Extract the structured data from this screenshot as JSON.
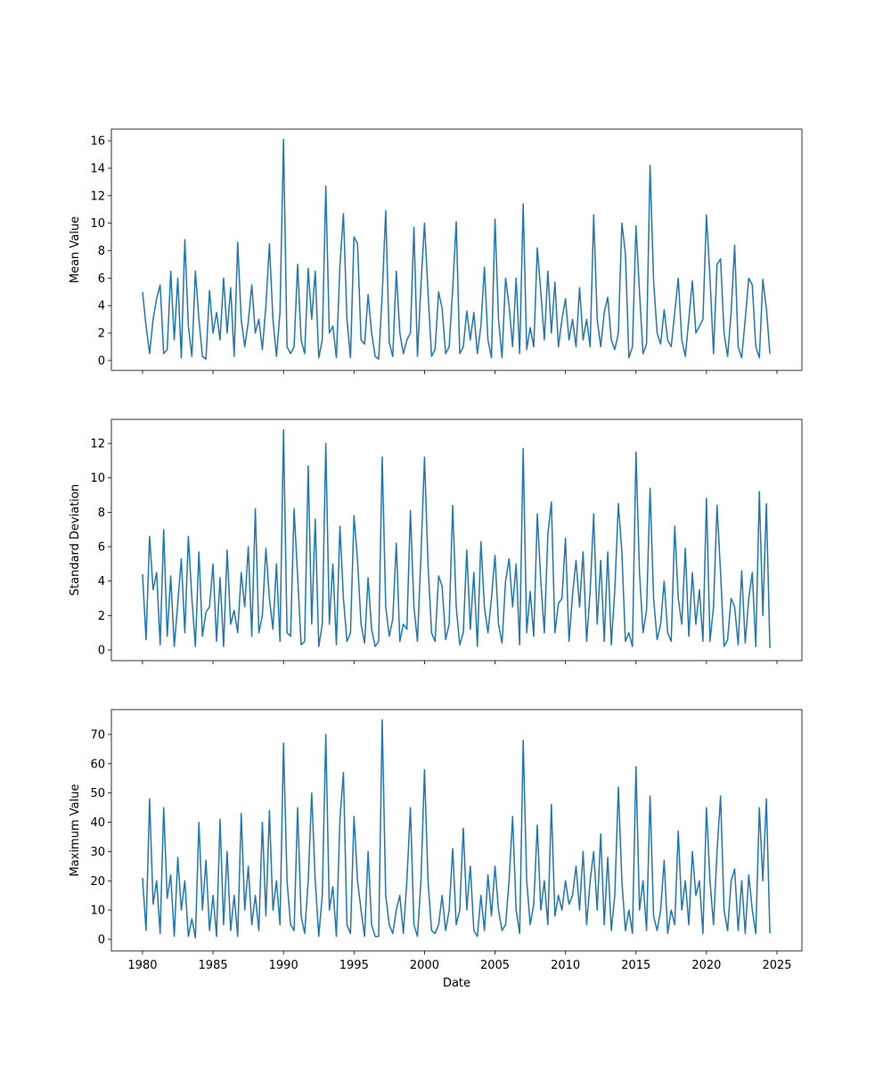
{
  "chart_data": [
    {
      "type": "line",
      "ylabel": "Mean Value",
      "color": "#1f77b4",
      "x": [
        1980,
        1980.25,
        1980.5,
        1980.75,
        1981,
        1981.25,
        1981.5,
        1981.75,
        1982,
        1982.25,
        1982.5,
        1982.75,
        1983,
        1983.25,
        1983.5,
        1983.75,
        1984,
        1984.25,
        1984.5,
        1984.75,
        1985,
        1985.25,
        1985.5,
        1985.75,
        1986,
        1986.25,
        1986.5,
        1986.75,
        1987,
        1987.25,
        1987.5,
        1987.75,
        1988,
        1988.25,
        1988.5,
        1988.75,
        1989,
        1989.25,
        1989.5,
        1989.75,
        1990,
        1990.25,
        1990.5,
        1990.75,
        1991,
        1991.25,
        1991.5,
        1991.75,
        1992,
        1992.25,
        1992.5,
        1992.75,
        1993,
        1993.25,
        1993.5,
        1993.75,
        1994,
        1994.25,
        1994.5,
        1994.75,
        1995,
        1995.25,
        1995.5,
        1995.75,
        1996,
        1996.25,
        1996.5,
        1996.75,
        1997,
        1997.25,
        1997.5,
        1997.75,
        1998,
        1998.25,
        1998.5,
        1998.75,
        1999,
        1999.25,
        1999.5,
        1999.75,
        2000,
        2000.25,
        2000.5,
        2000.75,
        2001,
        2001.25,
        2001.5,
        2001.75,
        2002,
        2002.25,
        2002.5,
        2002.75,
        2003,
        2003.25,
        2003.5,
        2003.75,
        2004,
        2004.25,
        2004.5,
        2004.75,
        2005,
        2005.25,
        2005.5,
        2005.75,
        2006,
        2006.25,
        2006.5,
        2006.75,
        2007,
        2007.25,
        2007.5,
        2007.75,
        2008,
        2008.25,
        2008.5,
        2008.75,
        2009,
        2009.25,
        2009.5,
        2009.75,
        2010,
        2010.25,
        2010.5,
        2010.75,
        2011,
        2011.25,
        2011.5,
        2011.75,
        2012,
        2012.25,
        2012.5,
        2012.75,
        2013,
        2013.25,
        2013.5,
        2013.75,
        2014,
        2014.25,
        2014.5,
        2014.75,
        2015,
        2015.25,
        2015.5,
        2015.75,
        2016,
        2016.25,
        2016.5,
        2016.75,
        2017,
        2017.25,
        2017.5,
        2017.75,
        2018,
        2018.25,
        2018.5,
        2018.75,
        2019,
        2019.25,
        2019.5,
        2019.75,
        2020,
        2020.25,
        2020.5,
        2020.75,
        2021,
        2021.25,
        2021.5,
        2021.75,
        2022,
        2022.25,
        2022.5,
        2022.75,
        2023,
        2023.25,
        2023.5,
        2023.75,
        2024,
        2024.25,
        2024.5
      ],
      "values": [
        5,
        2.5,
        0.5,
        3,
        4.5,
        5.5,
        0.5,
        0.8,
        6.5,
        1.5,
        6,
        0.2,
        8.8,
        2.5,
        0.3,
        6.5,
        3,
        0.3,
        0.1,
        5.1,
        2,
        3.5,
        1.5,
        6,
        2,
        5.3,
        0.3,
        8.6,
        3,
        1,
        2.8,
        5.5,
        2,
        3,
        0.8,
        4,
        8.5,
        3,
        0.3,
        3.5,
        16.1,
        1,
        0.5,
        1,
        7,
        1.5,
        0.5,
        6.7,
        3,
        6.5,
        0.2,
        1.5,
        12.7,
        2,
        2.5,
        0.2,
        6.9,
        10.7,
        3,
        0.2,
        9,
        8.5,
        1.5,
        1.2,
        4.8,
        2,
        0.3,
        0.1,
        4.8,
        10.9,
        1.3,
        0.3,
        6.5,
        2,
        0.5,
        1.5,
        2,
        9.7,
        0.3,
        5.5,
        10,
        5,
        0.3,
        0.8,
        5,
        3.8,
        0.5,
        1,
        5.2,
        10.1,
        0.5,
        1,
        3.6,
        1.5,
        3.5,
        0.5,
        2.5,
        6.8,
        1.5,
        0.2,
        10.3,
        3,
        0.2,
        6,
        4,
        1,
        6,
        0.5,
        11.4,
        0.8,
        2.4,
        1,
        8.2,
        5,
        1.5,
        6.5,
        2,
        5.7,
        1,
        3,
        4.5,
        1.5,
        3,
        1,
        5.3,
        1.5,
        3,
        1,
        10.6,
        3,
        1,
        3.5,
        4.6,
        1.5,
        0.8,
        2,
        10,
        7.8,
        0.2,
        1,
        9.8,
        5,
        0.5,
        1.2,
        14.2,
        5.8,
        2,
        1.2,
        3.7,
        1.5,
        1,
        3.5,
        6,
        1.5,
        0.3,
        3,
        5.8,
        2,
        2.5,
        3,
        10.6,
        6,
        0.5,
        7,
        7.4,
        2,
        0.3,
        3.5,
        8.4,
        1,
        0.2,
        3,
        6,
        5.5,
        1,
        0.2,
        5.9,
        3.8,
        0.5
      ],
      "xlim": [
        1977.79,
        2026.77
      ],
      "xticks": [
        1980,
        1985,
        1990,
        1995,
        2000,
        2005,
        2010,
        2015,
        2020,
        2025
      ],
      "xticklabels": false,
      "ylim": [
        -0.72,
        16.85
      ],
      "yticks": [
        0,
        2,
        4,
        6,
        8,
        10,
        12,
        14,
        16
      ]
    },
    {
      "type": "line",
      "ylabel": "Standard Deviation",
      "color": "#1f77b4",
      "x": [
        1980,
        1980.25,
        1980.5,
        1980.75,
        1981,
        1981.25,
        1981.5,
        1981.75,
        1982,
        1982.25,
        1982.5,
        1982.75,
        1983,
        1983.25,
        1983.5,
        1983.75,
        1984,
        1984.25,
        1984.5,
        1984.75,
        1985,
        1985.25,
        1985.5,
        1985.75,
        1986,
        1986.25,
        1986.5,
        1986.75,
        1987,
        1987.25,
        1987.5,
        1987.75,
        1988,
        1988.25,
        1988.5,
        1988.75,
        1989,
        1989.25,
        1989.5,
        1989.75,
        1990,
        1990.25,
        1990.5,
        1990.75,
        1991,
        1991.25,
        1991.5,
        1991.75,
        1992,
        1992.25,
        1992.5,
        1992.75,
        1993,
        1993.25,
        1993.5,
        1993.75,
        1994,
        1994.25,
        1994.5,
        1994.75,
        1995,
        1995.25,
        1995.5,
        1995.75,
        1996,
        1996.25,
        1996.5,
        1996.75,
        1997,
        1997.25,
        1997.5,
        1997.75,
        1998,
        1998.25,
        1998.5,
        1998.75,
        1999,
        1999.25,
        1999.5,
        1999.75,
        2000,
        2000.25,
        2000.5,
        2000.75,
        2001,
        2001.25,
        2001.5,
        2001.75,
        2002,
        2002.25,
        2002.5,
        2002.75,
        2003,
        2003.25,
        2003.5,
        2003.75,
        2004,
        2004.25,
        2004.5,
        2004.75,
        2005,
        2005.25,
        2005.5,
        2005.75,
        2006,
        2006.25,
        2006.5,
        2006.75,
        2007,
        2007.25,
        2007.5,
        2007.75,
        2008,
        2008.25,
        2008.5,
        2008.75,
        2009,
        2009.25,
        2009.5,
        2009.75,
        2010,
        2010.25,
        2010.5,
        2010.75,
        2011,
        2011.25,
        2011.5,
        2011.75,
        2012,
        2012.25,
        2012.5,
        2012.75,
        2013,
        2013.25,
        2013.5,
        2013.75,
        2014,
        2014.25,
        2014.5,
        2014.75,
        2015,
        2015.25,
        2015.5,
        2015.75,
        2016,
        2016.25,
        2016.5,
        2016.75,
        2017,
        2017.25,
        2017.5,
        2017.75,
        2018,
        2018.25,
        2018.5,
        2018.75,
        2019,
        2019.25,
        2019.5,
        2019.75,
        2020,
        2020.25,
        2020.5,
        2020.75,
        2021,
        2021.25,
        2021.5,
        2021.75,
        2022,
        2022.25,
        2022.5,
        2022.75,
        2023,
        2023.25,
        2023.5,
        2023.75,
        2024,
        2024.25,
        2024.5
      ],
      "values": [
        4.4,
        0.6,
        6.6,
        3.5,
        4.5,
        0.3,
        7,
        0.8,
        4.3,
        0.2,
        2.7,
        5.3,
        1,
        6.6,
        3,
        0.2,
        5.7,
        0.8,
        2.2,
        2.5,
        5,
        0.5,
        4.2,
        0.2,
        5.8,
        1.5,
        2.3,
        1,
        4.5,
        2.5,
        6,
        0.8,
        8.2,
        1,
        2,
        5.9,
        3,
        1.2,
        5,
        0.5,
        12.8,
        1,
        0.8,
        8.2,
        4.3,
        0.3,
        0.5,
        10.7,
        1.5,
        7.6,
        0.2,
        1.5,
        12,
        1.5,
        5,
        0.3,
        7.2,
        3,
        0.5,
        1,
        7.8,
        5.2,
        1.5,
        0.4,
        4.2,
        1.2,
        0.2,
        0.5,
        11.2,
        2.5,
        0.8,
        1.8,
        6.2,
        0.5,
        1.5,
        1.2,
        8.1,
        2.5,
        0.5,
        5.5,
        11.2,
        5,
        1,
        0.5,
        4.3,
        3.7,
        0.6,
        1.5,
        8.4,
        2.5,
        0.3,
        1,
        5.8,
        1.2,
        4.5,
        0.2,
        6.3,
        2.5,
        1,
        3,
        5.5,
        1.5,
        0.4,
        4,
        5.3,
        2.5,
        5,
        0.3,
        11.7,
        1,
        3.4,
        0.8,
        7.9,
        4,
        1,
        6.7,
        8.6,
        1,
        2.7,
        3,
        6.5,
        0.5,
        3.2,
        5.2,
        2.5,
        5.7,
        0.5,
        3.4,
        7.9,
        1.5,
        5.2,
        0.5,
        5.7,
        0.3,
        3.5,
        8.5,
        5.7,
        0.5,
        1,
        0.2,
        11.5,
        4.5,
        1,
        2.3,
        9.4,
        3,
        0.6,
        1.5,
        4,
        1,
        0.5,
        7.2,
        3,
        1.5,
        5.9,
        0.8,
        4.5,
        1.5,
        3.5,
        0.5,
        8.8,
        0.5,
        2.5,
        8.4,
        4.5,
        0.2,
        0.6,
        3,
        2.5,
        0.3,
        4.6,
        0.4,
        3,
        4.5,
        0.2,
        9.2,
        2,
        8.5,
        0.1
      ],
      "xlim": [
        1977.79,
        2026.77
      ],
      "xticks": [
        1980,
        1985,
        1990,
        1995,
        2000,
        2005,
        2010,
        2015,
        2020,
        2025
      ],
      "xticklabels": false,
      "ylim": [
        -0.62,
        13.4
      ],
      "yticks": [
        0,
        2,
        4,
        6,
        8,
        10,
        12
      ]
    },
    {
      "type": "line",
      "ylabel": "Maximum Value",
      "xlabel": "Date",
      "color": "#1f77b4",
      "x": [
        1980,
        1980.25,
        1980.5,
        1980.75,
        1981,
        1981.25,
        1981.5,
        1981.75,
        1982,
        1982.25,
        1982.5,
        1982.75,
        1983,
        1983.25,
        1983.5,
        1983.75,
        1984,
        1984.25,
        1984.5,
        1984.75,
        1985,
        1985.25,
        1985.5,
        1985.75,
        1986,
        1986.25,
        1986.5,
        1986.75,
        1987,
        1987.25,
        1987.5,
        1987.75,
        1988,
        1988.25,
        1988.5,
        1988.75,
        1989,
        1989.25,
        1989.5,
        1989.75,
        1990,
        1990.25,
        1990.5,
        1990.75,
        1991,
        1991.25,
        1991.5,
        1991.75,
        1992,
        1992.25,
        1992.5,
        1992.75,
        1993,
        1993.25,
        1993.5,
        1993.75,
        1994,
        1994.25,
        1994.5,
        1994.75,
        1995,
        1995.25,
        1995.5,
        1995.75,
        1996,
        1996.25,
        1996.5,
        1996.75,
        1997,
        1997.25,
        1997.5,
        1997.75,
        1998,
        1998.25,
        1998.5,
        1998.75,
        1999,
        1999.25,
        1999.5,
        1999.75,
        2000,
        2000.25,
        2000.5,
        2000.75,
        2001,
        2001.25,
        2001.5,
        2001.75,
        2002,
        2002.25,
        2002.5,
        2002.75,
        2003,
        2003.25,
        2003.5,
        2003.75,
        2004,
        2004.25,
        2004.5,
        2004.75,
        2005,
        2005.25,
        2005.5,
        2005.75,
        2006,
        2006.25,
        2006.5,
        2006.75,
        2007,
        2007.25,
        2007.5,
        2007.75,
        2008,
        2008.25,
        2008.5,
        2008.75,
        2009,
        2009.25,
        2009.5,
        2009.75,
        2010,
        2010.25,
        2010.5,
        2010.75,
        2011,
        2011.25,
        2011.5,
        2011.75,
        2012,
        2012.25,
        2012.5,
        2012.75,
        2013,
        2013.25,
        2013.5,
        2013.75,
        2014,
        2014.25,
        2014.5,
        2014.75,
        2015,
        2015.25,
        2015.5,
        2015.75,
        2016,
        2016.25,
        2016.5,
        2016.75,
        2017,
        2017.25,
        2017.5,
        2017.75,
        2018,
        2018.25,
        2018.5,
        2018.75,
        2019,
        2019.25,
        2019.5,
        2019.75,
        2020,
        2020.25,
        2020.5,
        2020.75,
        2021,
        2021.25,
        2021.5,
        2021.75,
        2022,
        2022.25,
        2022.5,
        2022.75,
        2023,
        2023.25,
        2023.5,
        2023.75,
        2024,
        2024.25,
        2024.5
      ],
      "values": [
        21,
        3,
        48,
        12,
        20,
        2,
        45,
        14,
        22,
        1,
        28,
        10,
        20,
        1,
        7,
        0.5,
        40,
        10,
        27,
        3,
        15,
        1,
        41,
        5,
        30,
        3,
        15,
        1,
        43,
        10,
        25,
        5,
        15,
        3,
        40,
        8,
        44,
        10,
        20,
        5,
        67,
        20,
        5,
        3,
        45,
        8,
        2,
        20,
        50,
        20,
        1,
        15,
        70,
        10,
        18,
        1,
        41,
        57,
        5,
        2,
        42,
        20,
        10,
        1,
        30,
        5,
        1,
        1,
        75,
        15,
        5,
        2,
        10,
        15,
        2,
        20,
        45,
        5,
        1,
        20,
        58,
        20,
        3,
        2,
        5,
        15,
        3,
        10,
        31,
        5,
        10,
        38,
        10,
        25,
        3,
        1,
        15,
        3,
        22,
        8,
        25,
        10,
        3,
        5,
        20,
        42,
        10,
        2,
        68,
        20,
        5,
        12,
        39,
        10,
        20,
        5,
        46,
        8,
        15,
        10,
        20,
        12,
        15,
        25,
        10,
        30,
        5,
        20,
        30,
        10,
        36,
        5,
        28,
        3,
        15,
        52,
        20,
        3,
        10,
        2,
        59,
        10,
        20,
        3,
        49,
        8,
        3,
        10,
        27,
        2,
        10,
        5,
        37,
        10,
        20,
        5,
        30,
        15,
        20,
        2,
        45,
        20,
        5,
        30,
        49,
        10,
        3,
        20,
        24,
        3,
        20,
        2,
        22,
        10,
        2,
        45,
        20,
        48,
        2
      ],
      "xlim": [
        1977.79,
        2026.77
      ],
      "xticks": [
        1980,
        1985,
        1990,
        1995,
        2000,
        2005,
        2010,
        2015,
        2020,
        2025
      ],
      "xticklabels": true,
      "ylim": [
        -3.96,
        78.5
      ],
      "yticks": [
        0,
        10,
        20,
        30,
        40,
        50,
        60,
        70
      ]
    }
  ]
}
